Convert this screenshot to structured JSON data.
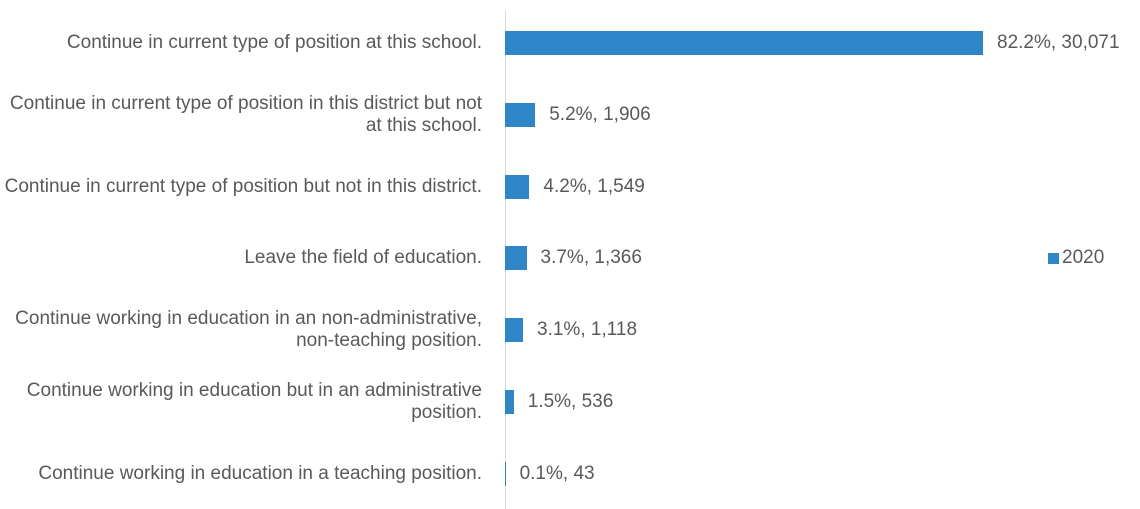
{
  "chart_data": {
    "type": "bar",
    "orientation": "horizontal",
    "categories": [
      "Continue in current type of position at this school.",
      "Continue in current type of position in this district but not at this school.",
      "Continue in current type of position but not in this district.",
      "Leave the field of education.",
      "Continue working in education in an non-administrative, non-teaching position.",
      "Continue working in education but in an administrative position.",
      "Continue working in education in a teaching position."
    ],
    "series": [
      {
        "name": "2020",
        "color": "#2e86c8",
        "values": [
          82.2,
          5.2,
          4.2,
          3.7,
          3.1,
          1.5,
          0.1
        ],
        "value_labels": [
          "82.2%, 30,071",
          "5.2%, 1,906",
          "4.2%, 1,549",
          "3.7%, 1,366",
          "3.1%, 1,118",
          "1.5%, 536",
          "0.1%, 43"
        ]
      }
    ],
    "legend": "right"
  }
}
